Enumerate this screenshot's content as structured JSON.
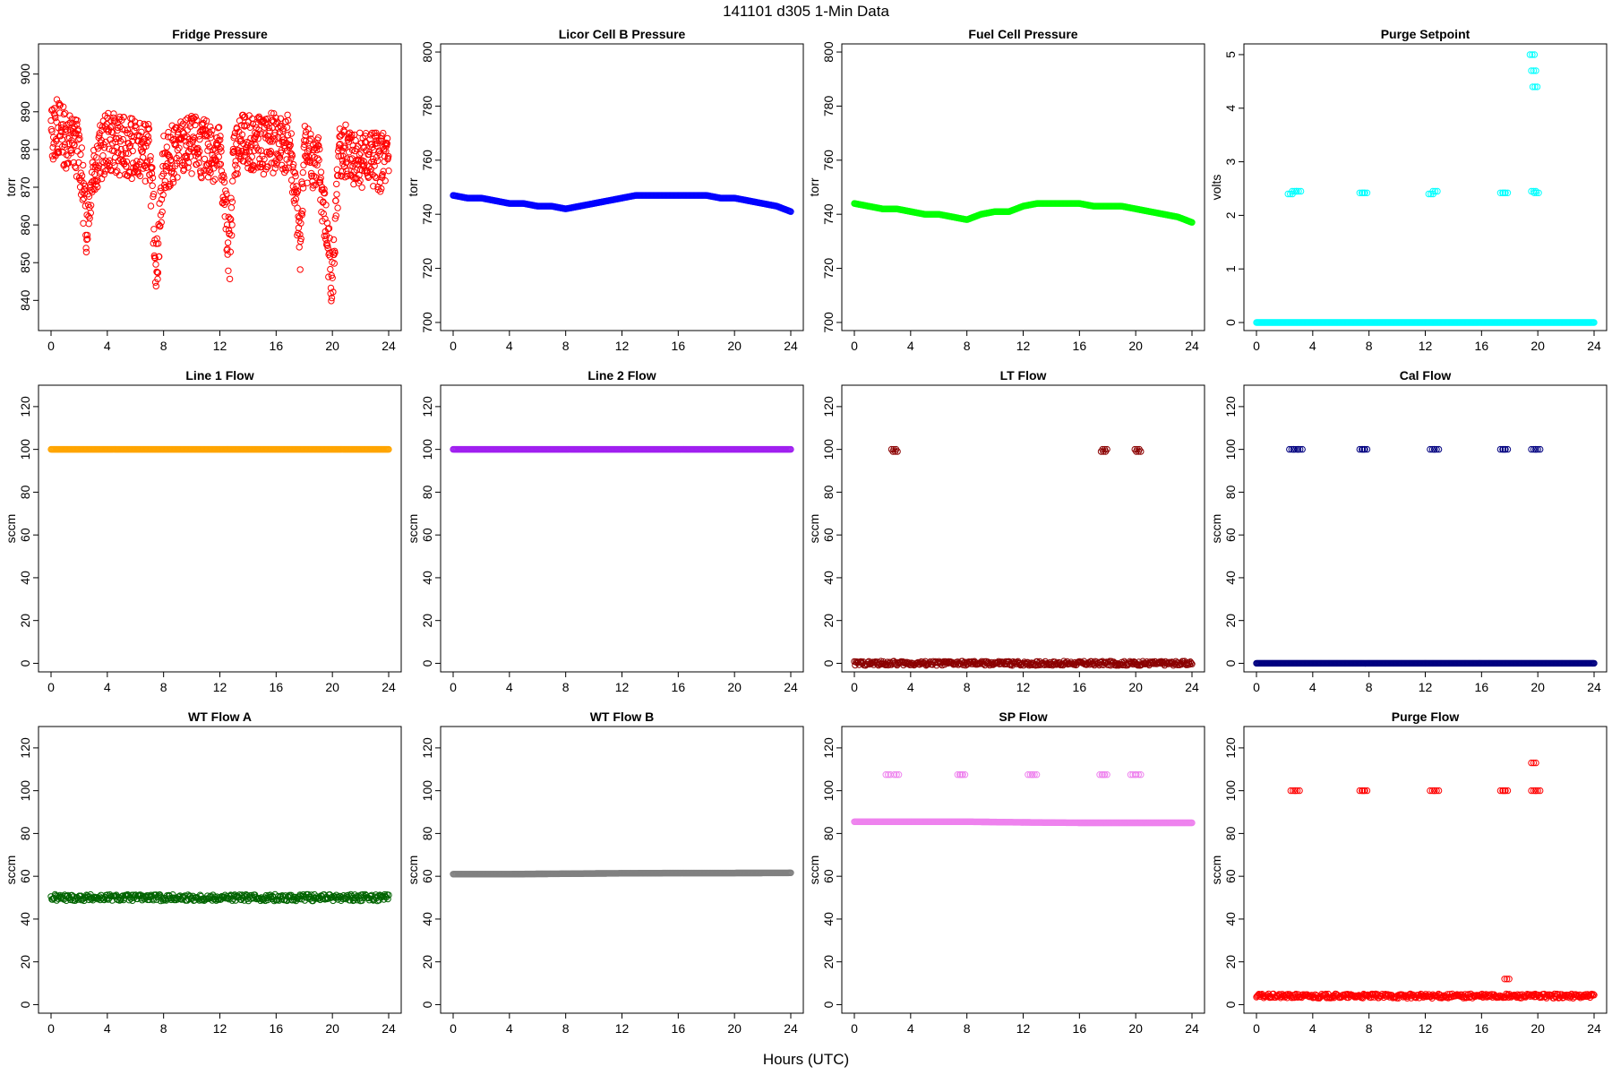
{
  "suptitle": "141101    d305    1-Min Data",
  "xlabel": "Hours (UTC)",
  "chart_data": [
    {
      "type": "scatter",
      "title": "Fridge Pressure",
      "xlabel": "",
      "ylabel": "torr",
      "xlim": [
        0,
        24
      ],
      "ylim": [
        832,
        908
      ],
      "xticks": [
        0,
        4,
        8,
        12,
        16,
        20,
        24
      ],
      "yticks": [
        840,
        850,
        860,
        870,
        880,
        890,
        900
      ],
      "grid": false,
      "color": "#ff0000",
      "marker": "open-circle",
      "series": [
        {
          "note": "noisy baseline ~880 torr with dips",
          "x": [
            0.0,
            0.5,
            1.0,
            1.5,
            2.0,
            2.5,
            3.0,
            4.0,
            5.0,
            6.0,
            7.0,
            7.5,
            8.0,
            9.0,
            10.0,
            11.0,
            12.0,
            12.7,
            13.0,
            14.0,
            15.0,
            16.0,
            17.0,
            17.7,
            18.0,
            19.0,
            20.0,
            20.5,
            21.0,
            22.0,
            23.0,
            24.0
          ],
          "y": [
            884,
            886,
            883,
            882,
            880,
            860,
            876,
            882,
            881,
            880,
            879,
            848,
            876,
            880,
            881,
            880,
            879,
            852,
            880,
            882,
            881,
            882,
            881,
            855,
            880,
            876,
            845,
            878,
            879,
            878,
            877,
            876
          ]
        }
      ]
    },
    {
      "type": "scatter",
      "title": "Licor Cell B Pressure",
      "xlabel": "",
      "ylabel": "torr",
      "xlim": [
        0,
        24
      ],
      "ylim": [
        697,
        803
      ],
      "xticks": [
        0,
        4,
        8,
        12,
        16,
        20,
        24
      ],
      "yticks": [
        700,
        720,
        740,
        760,
        780,
        800
      ],
      "grid": false,
      "color": "#0000ff",
      "series": [
        {
          "x": [
            0,
            1,
            2,
            3,
            4,
            5,
            6,
            7,
            8,
            9,
            10,
            11,
            12,
            13,
            14,
            15,
            16,
            17,
            18,
            19,
            20,
            21,
            22,
            23,
            24
          ],
          "y": [
            747,
            746,
            746,
            745,
            744,
            744,
            743,
            743,
            742,
            743,
            744,
            745,
            746,
            747,
            747,
            747,
            747,
            747,
            747,
            746,
            746,
            745,
            744,
            743,
            741
          ]
        }
      ]
    },
    {
      "type": "scatter",
      "title": "Fuel Cell Pressure",
      "xlabel": "",
      "ylabel": "torr",
      "xlim": [
        0,
        24
      ],
      "ylim": [
        697,
        803
      ],
      "xticks": [
        0,
        4,
        8,
        12,
        16,
        20,
        24
      ],
      "yticks": [
        700,
        720,
        740,
        760,
        780,
        800
      ],
      "grid": false,
      "color": "#00ff00",
      "series": [
        {
          "x": [
            0,
            1,
            2,
            3,
            4,
            5,
            6,
            7,
            8,
            9,
            10,
            11,
            12,
            13,
            14,
            15,
            16,
            17,
            18,
            19,
            20,
            21,
            22,
            23,
            24
          ],
          "y": [
            744,
            743,
            742,
            742,
            741,
            740,
            740,
            739,
            738,
            740,
            741,
            741,
            743,
            744,
            744,
            744,
            744,
            743,
            743,
            743,
            742,
            741,
            740,
            739,
            737
          ]
        }
      ]
    },
    {
      "type": "scatter",
      "title": "Purge Setpoint",
      "xlabel": "",
      "ylabel": "volts",
      "xlim": [
        0,
        24
      ],
      "ylim": [
        -0.15,
        5.2
      ],
      "xticks": [
        0,
        4,
        8,
        12,
        16,
        20,
        24
      ],
      "yticks": [
        0,
        1,
        2,
        3,
        4,
        5
      ],
      "grid": false,
      "color": "#00ffff",
      "series": [
        {
          "note": "baseline 0 with purge events ~2.4 V",
          "x": [
            0,
            4,
            8,
            12,
            16,
            19.3,
            20,
            24,
            2.4,
            2.7,
            3.0,
            7.5,
            7.7,
            12.4,
            12.7,
            17.5,
            17.7,
            19.7,
            19.9,
            19.6,
            19.7,
            19.8
          ],
          "y": [
            0,
            0,
            0,
            0,
            0,
            0,
            0,
            0,
            2.4,
            2.45,
            2.45,
            2.42,
            2.42,
            2.4,
            2.45,
            2.42,
            2.42,
            2.45,
            2.42,
            5.0,
            4.7,
            4.4
          ]
        }
      ]
    },
    {
      "type": "scatter",
      "title": "Line 1 Flow",
      "xlabel": "",
      "ylabel": "sccm",
      "xlim": [
        0,
        24
      ],
      "ylim": [
        -4,
        130
      ],
      "xticks": [
        0,
        4,
        8,
        12,
        16,
        20,
        24
      ],
      "yticks": [
        0,
        20,
        40,
        60,
        80,
        100,
        120
      ],
      "grid": false,
      "color": "#ffa500",
      "series": [
        {
          "x": [
            0,
            4,
            8,
            12,
            16,
            19.0,
            19.8,
            24
          ],
          "y": [
            100,
            100,
            100,
            100,
            100,
            100,
            100,
            100
          ]
        }
      ]
    },
    {
      "type": "scatter",
      "title": "Line 2 Flow",
      "xlabel": "",
      "ylabel": "sccm",
      "xlim": [
        0,
        24
      ],
      "ylim": [
        -4,
        130
      ],
      "xticks": [
        0,
        4,
        8,
        12,
        16,
        20,
        24
      ],
      "yticks": [
        0,
        20,
        40,
        60,
        80,
        100,
        120
      ],
      "grid": false,
      "color": "#a020f0",
      "series": [
        {
          "x": [
            0,
            4,
            8,
            12,
            16,
            19.2,
            19.5,
            24
          ],
          "y": [
            100,
            100,
            100,
            100,
            100,
            100,
            100,
            100
          ]
        }
      ]
    },
    {
      "type": "scatter",
      "title": "LT Flow",
      "xlabel": "",
      "ylabel": "sccm",
      "xlim": [
        0,
        24
      ],
      "ylim": [
        -4,
        130
      ],
      "xticks": [
        0,
        4,
        8,
        12,
        16,
        20,
        24
      ],
      "yticks": [
        0,
        20,
        40,
        60,
        80,
        100,
        120
      ],
      "grid": false,
      "color": "#8b0000",
      "series": [
        {
          "x": [
            0,
            4,
            8,
            12,
            16,
            20,
            24,
            2.8,
            2.9,
            17.7,
            17.8,
            20.1,
            20.2
          ],
          "y": [
            0,
            0,
            0,
            0,
            0,
            0,
            0,
            100,
            99,
            99,
            100,
            100,
            99
          ]
        }
      ]
    },
    {
      "type": "scatter",
      "title": "Cal Flow",
      "xlabel": "",
      "ylabel": "sccm",
      "xlim": [
        0,
        24
      ],
      "ylim": [
        -4,
        130
      ],
      "xticks": [
        0,
        4,
        8,
        12,
        16,
        20,
        24
      ],
      "yticks": [
        0,
        20,
        40,
        60,
        80,
        100,
        120
      ],
      "grid": false,
      "color": "#000080",
      "series": [
        {
          "x": [
            0,
            4,
            8,
            12,
            16,
            20,
            24,
            2.5,
            2.8,
            3.1,
            7.5,
            7.7,
            12.5,
            12.8,
            17.5,
            17.7,
            19.7,
            20.0
          ],
          "y": [
            0,
            0,
            0,
            0,
            0,
            0,
            0,
            100,
            100,
            100,
            100,
            100,
            100,
            100,
            100,
            100,
            100,
            100
          ]
        }
      ]
    },
    {
      "type": "scatter",
      "title": "WT Flow A",
      "xlabel": "",
      "ylabel": "sccm",
      "xlim": [
        0,
        24
      ],
      "ylim": [
        -4,
        130
      ],
      "xticks": [
        0,
        4,
        8,
        12,
        16,
        20,
        24
      ],
      "yticks": [
        0,
        20,
        40,
        60,
        80,
        100,
        120
      ],
      "grid": false,
      "color": "#006400",
      "series": [
        {
          "x": [
            0,
            4,
            8,
            12,
            16,
            19.0,
            19.6,
            24
          ],
          "y": [
            50,
            50,
            50,
            50,
            50,
            50,
            50,
            50
          ]
        }
      ]
    },
    {
      "type": "scatter",
      "title": "WT Flow B",
      "xlabel": "",
      "ylabel": "sccm",
      "xlim": [
        0,
        24
      ],
      "ylim": [
        -4,
        130
      ],
      "xticks": [
        0,
        4,
        8,
        12,
        16,
        20,
        24
      ],
      "yticks": [
        0,
        20,
        40,
        60,
        80,
        100,
        120
      ],
      "grid": false,
      "color": "#808080",
      "series": [
        {
          "x": [
            0,
            4,
            8,
            12,
            16,
            19.2,
            19.5,
            24
          ],
          "y": [
            61,
            61,
            61.2,
            61.4,
            61.5,
            61.5,
            61.5,
            61.6
          ]
        }
      ]
    },
    {
      "type": "scatter",
      "title": "SP Flow",
      "xlabel": "",
      "ylabel": "sccm",
      "xlim": [
        0,
        24
      ],
      "ylim": [
        -4,
        130
      ],
      "xticks": [
        0,
        4,
        8,
        12,
        16,
        20,
        24
      ],
      "yticks": [
        0,
        20,
        40,
        60,
        80,
        100,
        120
      ],
      "grid": false,
      "color": "#ee82ee",
      "series": [
        {
          "x": [
            0,
            4,
            8,
            12,
            16,
            20,
            24,
            2.4,
            3.0,
            7.5,
            7.7,
            12.5,
            12.8,
            17.6,
            17.8,
            19.8,
            20.2
          ],
          "y": [
            85.5,
            85.5,
            85.5,
            85.2,
            85.0,
            85.0,
            85.0,
            107.5,
            107.5,
            107.5,
            107.5,
            107.5,
            107.5,
            107.5,
            107.5,
            107.5,
            107.5
          ]
        }
      ]
    },
    {
      "type": "scatter",
      "title": "Purge Flow",
      "xlabel": "",
      "ylabel": "sccm",
      "xlim": [
        0,
        24
      ],
      "ylim": [
        -4,
        130
      ],
      "xticks": [
        0,
        4,
        8,
        12,
        16,
        20,
        24
      ],
      "yticks": [
        0,
        20,
        40,
        60,
        80,
        100,
        120
      ],
      "grid": false,
      "color": "#ff0000",
      "series": [
        {
          "x": [
            0,
            4,
            8,
            12,
            16,
            20,
            24,
            2.6,
            2.9,
            7.5,
            7.7,
            12.5,
            12.8,
            17.5,
            17.7,
            19.7,
            20.0,
            19.7,
            17.8
          ],
          "y": [
            4,
            4,
            4,
            4,
            4,
            4,
            4,
            100,
            100,
            100,
            100,
            100,
            100,
            100,
            100,
            100,
            100,
            113,
            12
          ]
        }
      ]
    }
  ]
}
